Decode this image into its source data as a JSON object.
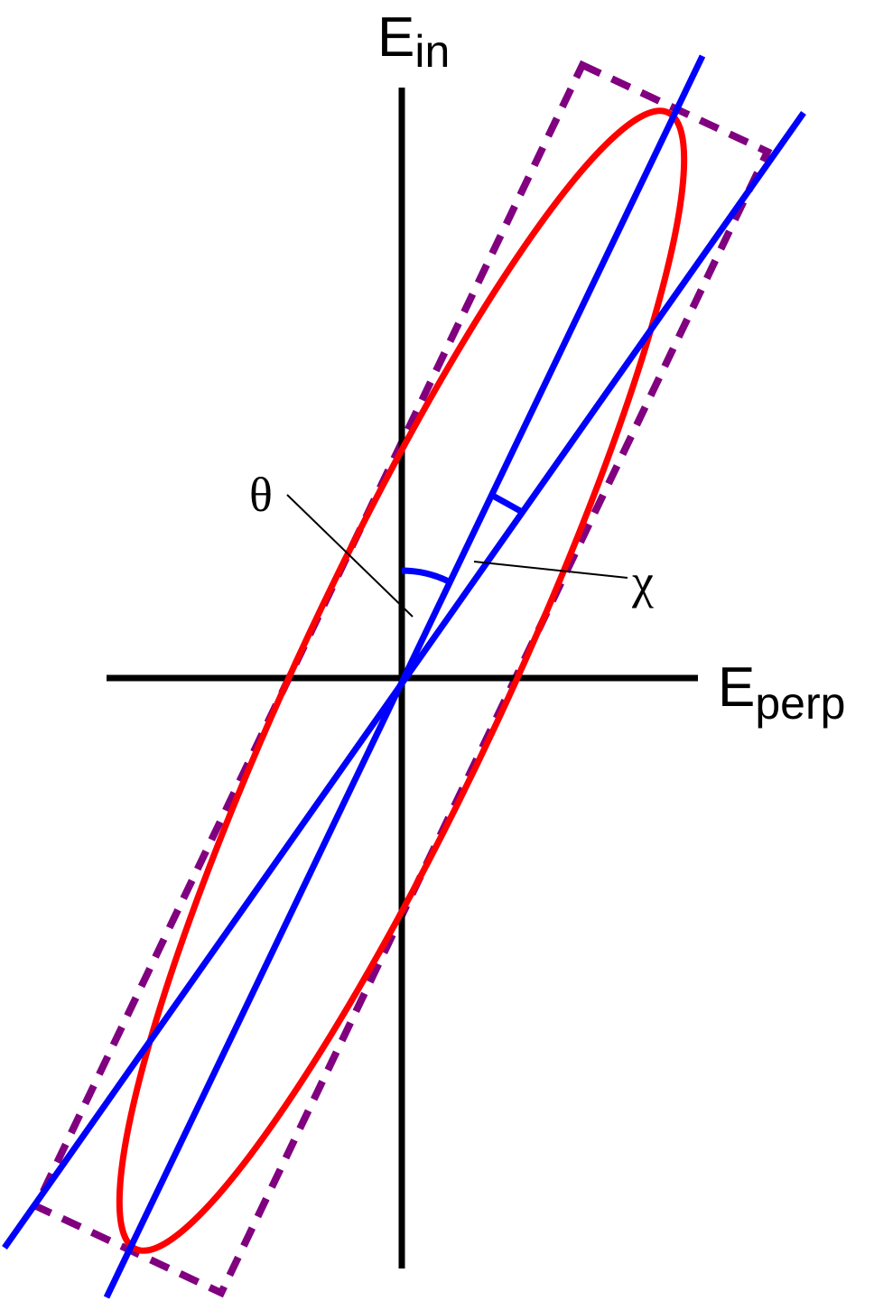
{
  "axes": {
    "vertical": {
      "label": "E",
      "subscript": "in"
    },
    "horizontal": {
      "label": "E",
      "subscript": "perp"
    }
  },
  "angles": {
    "theta": {
      "label": "θ"
    },
    "chi": {
      "label": "χ"
    }
  }
}
